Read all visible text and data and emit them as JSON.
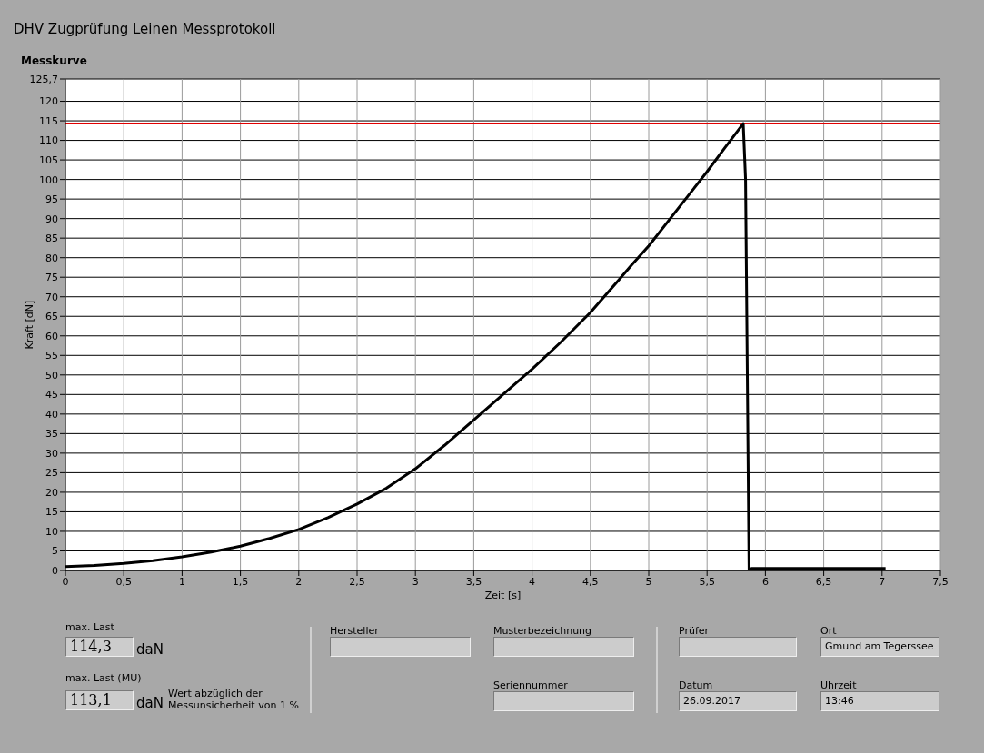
{
  "chart_data": {
    "type": "line",
    "title": "DHV Zugprüfung Leinen Messprotokoll",
    "subtitle": "Messkurve",
    "xlabel": "Zeit [s]",
    "ylabel": "Kraft [dN]",
    "x": [
      0,
      0.25,
      0.5,
      0.75,
      1,
      1.25,
      1.5,
      1.75,
      2,
      2.25,
      2.5,
      2.75,
      3,
      3.25,
      3.5,
      3.75,
      4,
      4.25,
      4.5,
      4.75,
      4.85,
      5,
      5.25,
      5.5,
      5.65,
      5.81,
      5.83,
      5.86,
      5.88,
      6.5,
      7.03
    ],
    "series": [
      {
        "color": "#000000",
        "values": [
          1,
          1.3,
          1.8,
          2.5,
          3.5,
          4.7,
          6.2,
          8.2,
          10.5,
          13.5,
          17,
          21,
          26,
          32,
          38.5,
          45,
          51.5,
          58.5,
          66,
          74.5,
          78,
          83,
          92.5,
          102,
          108,
          114.3,
          100,
          0.3,
          0.5,
          0.5,
          0.5
        ]
      }
    ],
    "xlim": [
      0,
      7.5
    ],
    "xticks": [
      0,
      {
        "value": 0.5,
        "label": "0,5"
      },
      1,
      {
        "value": 1.5,
        "label": "1,5"
      },
      2,
      {
        "value": 2.5,
        "label": "2,5"
      },
      3,
      {
        "value": 3.5,
        "label": "3,5"
      },
      4,
      {
        "value": 4.5,
        "label": "4,5"
      },
      5,
      {
        "value": 5.5,
        "label": "5,5"
      },
      6,
      {
        "value": 6.5,
        "label": "6,5"
      },
      7,
      {
        "value": 7.5,
        "label": "7,5"
      }
    ],
    "ylim": [
      0,
      125.7
    ],
    "yticks": [
      0,
      5,
      10,
      15,
      20,
      25,
      30,
      35,
      40,
      45,
      50,
      55,
      60,
      65,
      70,
      75,
      80,
      85,
      90,
      95,
      100,
      105,
      110,
      115,
      120,
      {
        "value": 125.7,
        "label": "125,7"
      }
    ],
    "ref_lines": [
      {
        "axis": "y",
        "value": 114.3,
        "color": "#e00000"
      }
    ],
    "grid": true,
    "marker": "none",
    "line_style": "solid",
    "annotations": [
      "max. Last",
      "114,3",
      "daN",
      "max. Last (MU)",
      "113,1",
      "daN",
      "Wert abzüglich der Messunsicherheit von 1 %",
      "Hersteller",
      "Musterbezeichnung",
      "Seriennummer",
      "Prüfer",
      "Ort",
      "Gmund am Tegerssee",
      "Datum",
      "26.09.2017",
      "Uhrzeit",
      "13:46"
    ]
  }
}
